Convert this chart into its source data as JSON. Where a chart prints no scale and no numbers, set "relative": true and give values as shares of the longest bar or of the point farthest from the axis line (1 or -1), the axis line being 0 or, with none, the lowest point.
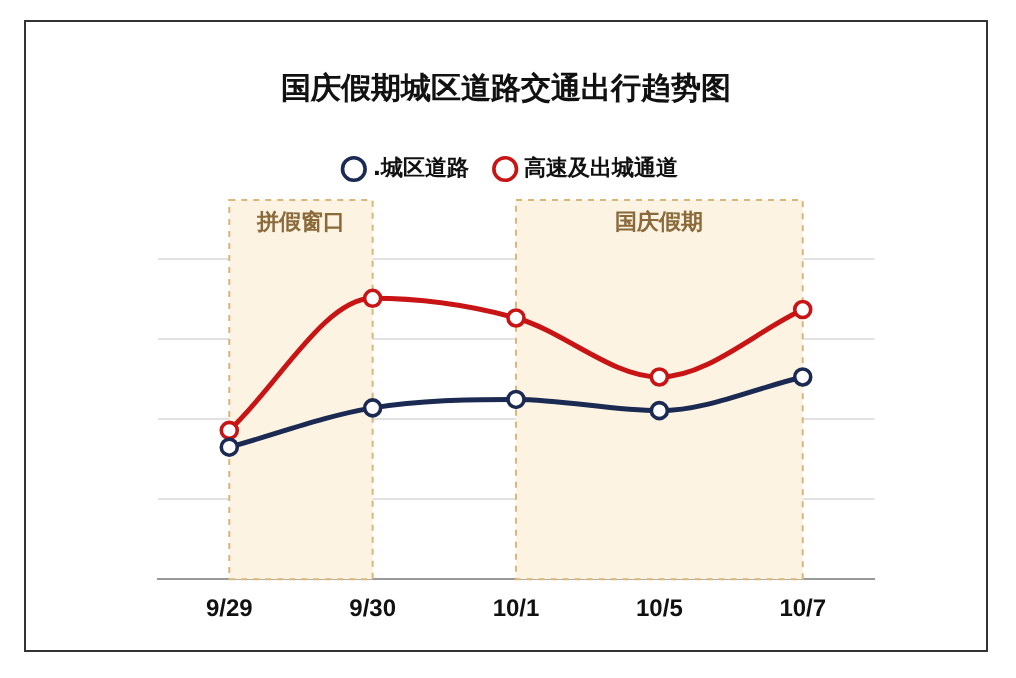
{
  "chart_data": {
    "type": "line",
    "title": "国庆假期城区道路交通出行趋势图",
    "relative": true,
    "categories": [
      "9/29",
      "9/30",
      "10/1",
      "10/5",
      "10/7"
    ],
    "series": [
      {
        "name": ".城区道路",
        "color": "#1b2a52",
        "values": [
          0.47,
          0.61,
          0.64,
          0.6,
          0.72
        ]
      },
      {
        "name": "高速及出城通道",
        "color": "#c81414",
        "values": [
          0.53,
          1,
          0.93,
          0.72,
          0.96
        ]
      }
    ],
    "bands": [
      {
        "axis": "x",
        "from": "9/29",
        "to": "9/30",
        "label": "拼假窗口",
        "color": "#fdf3e3"
      },
      {
        "axis": "x",
        "from": "10/1",
        "to": "10/7",
        "label": "国庆假期",
        "color": "#fdf3e3"
      }
    ],
    "grid": "y",
    "legend": "top",
    "marker": "circle",
    "line_style": "solid"
  }
}
